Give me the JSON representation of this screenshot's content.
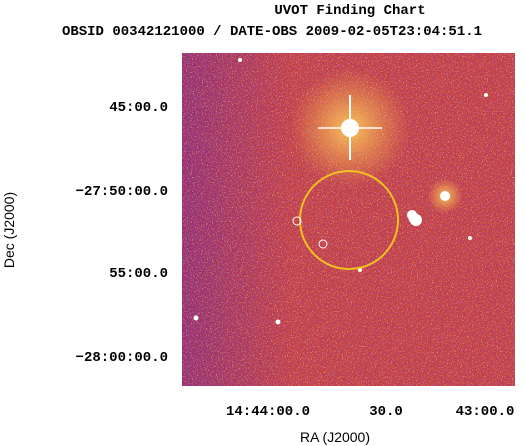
{
  "title": "UVOT Finding Chart",
  "subtitle": "OBSID 00342121000 / DATE-OBS 2009-02-05T23:04:51.1",
  "x_axis": {
    "label": "RA (J2000)",
    "tick_labels": [
      "14:44:00.0",
      "30.0",
      "43:00.0"
    ]
  },
  "y_axis": {
    "label": "Dec (J2000)",
    "tick_labels": [
      "45:00.0",
      "−27:50:00.0",
      "55:00.0",
      "−28:00:00.0"
    ]
  }
}
